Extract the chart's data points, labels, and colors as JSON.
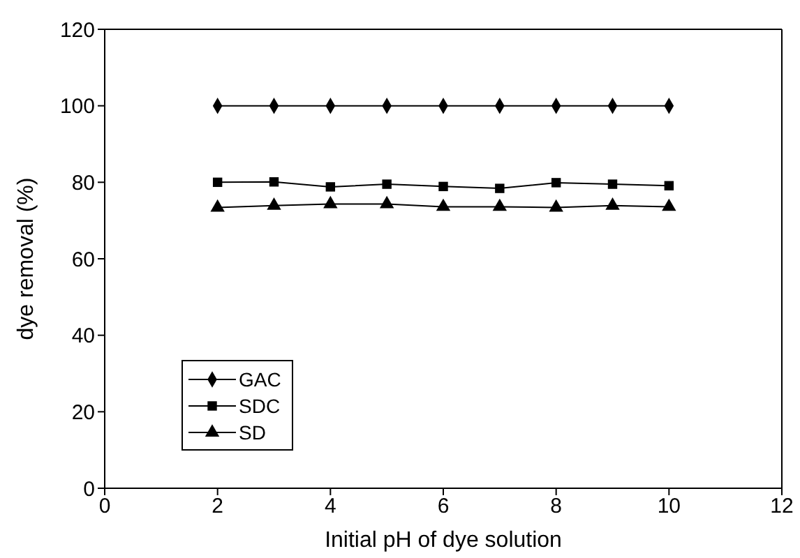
{
  "chart_data": {
    "type": "line",
    "xlabel": "Initial pH of dye solution",
    "ylabel": "dye removal (%)",
    "x": [
      2,
      3,
      4,
      5,
      6,
      7,
      8,
      9,
      10
    ],
    "series": [
      {
        "name": "GAC",
        "color": "#000000",
        "marker": "diamond",
        "values": [
          100,
          100,
          100,
          100,
          100,
          100,
          100,
          100,
          100
        ]
      },
      {
        "name": "SDC",
        "color": "#000000",
        "marker": "square",
        "values": [
          80,
          80.1,
          78.8,
          79.5,
          78.9,
          78.4,
          79.9,
          79.5,
          79.1
        ]
      },
      {
        "name": "SD",
        "color": "#000000",
        "marker": "triangle",
        "values": [
          73.4,
          73.9,
          74.3,
          74.3,
          73.6,
          73.6,
          73.4,
          73.9,
          73.6
        ]
      }
    ],
    "xlim": [
      0,
      12
    ],
    "xticks": [
      0,
      2,
      4,
      6,
      8,
      10,
      12
    ],
    "ylim": [
      0,
      120
    ],
    "yticks": [
      0,
      20,
      40,
      60,
      80,
      100,
      120
    ],
    "grid": false,
    "legend": "left"
  }
}
